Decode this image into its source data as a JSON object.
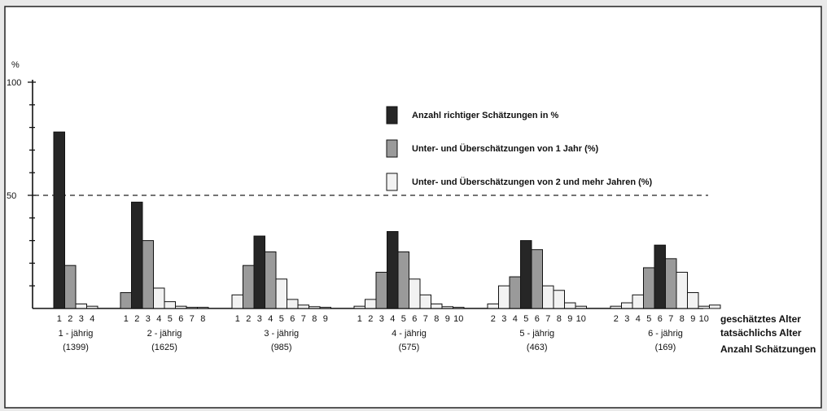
{
  "chart_data": {
    "type": "bar",
    "title": "",
    "ylabel": "%",
    "ylim": [
      0,
      100
    ],
    "yticks": [
      "50",
      "100"
    ],
    "reference_line": {
      "y": 50,
      "style": "dashed"
    },
    "legend_position": "top-center",
    "colors": {
      "correct": "#262626",
      "one_year": "#9a9a9a",
      "two_plus": "#f2f2f2"
    },
    "legend": [
      {
        "key": "correct",
        "label": "Anzahl richtiger Schätzungen in %"
      },
      {
        "key": "one_year",
        "label": "Unter- und Überschätzungen von 1 Jahr (%)"
      },
      {
        "key": "two_plus",
        "label": "Unter- und Überschätzungen von 2 und mehr Jahren (%)"
      }
    ],
    "row_labels": [
      "geschätztes Alter",
      "tatsächlichs Alter",
      "Anzahl Schätzungen"
    ],
    "groups": [
      {
        "actual_label": "1 - jährig",
        "count_label": "(1399)",
        "bars": [
          {
            "x": "1",
            "v": 78,
            "c": "correct"
          },
          {
            "x": "2",
            "v": 19,
            "c": "one_year"
          },
          {
            "x": "3",
            "v": 2,
            "c": "two_plus"
          },
          {
            "x": "4",
            "v": 1,
            "c": "two_plus"
          }
        ]
      },
      {
        "actual_label": "2 - jährig",
        "count_label": "(1625)",
        "bars": [
          {
            "x": "1",
            "v": 7,
            "c": "one_year"
          },
          {
            "x": "2",
            "v": 47,
            "c": "correct"
          },
          {
            "x": "3",
            "v": 30,
            "c": "one_year"
          },
          {
            "x": "4",
            "v": 9,
            "c": "two_plus"
          },
          {
            "x": "5",
            "v": 3,
            "c": "two_plus"
          },
          {
            "x": "6",
            "v": 1,
            "c": "two_plus"
          },
          {
            "x": "7",
            "v": 0.5,
            "c": "two_plus"
          },
          {
            "x": "8",
            "v": 0.5,
            "c": "two_plus"
          }
        ]
      },
      {
        "actual_label": "3 - jährig",
        "count_label": "(985)",
        "bars": [
          {
            "x": "1",
            "v": 6,
            "c": "two_plus"
          },
          {
            "x": "2",
            "v": 19,
            "c": "one_year"
          },
          {
            "x": "3",
            "v": 32,
            "c": "correct"
          },
          {
            "x": "4",
            "v": 25,
            "c": "one_year"
          },
          {
            "x": "5",
            "v": 13,
            "c": "two_plus"
          },
          {
            "x": "6",
            "v": 4,
            "c": "two_plus"
          },
          {
            "x": "7",
            "v": 1.5,
            "c": "two_plus"
          },
          {
            "x": "8",
            "v": 0.8,
            "c": "two_plus"
          },
          {
            "x": "9",
            "v": 0.5,
            "c": "two_plus"
          }
        ]
      },
      {
        "actual_label": "4 - jährig",
        "count_label": "(575)",
        "bars": [
          {
            "x": "1",
            "v": 1,
            "c": "two_plus"
          },
          {
            "x": "2",
            "v": 4,
            "c": "two_plus"
          },
          {
            "x": "3",
            "v": 16,
            "c": "one_year"
          },
          {
            "x": "4",
            "v": 34,
            "c": "correct"
          },
          {
            "x": "5",
            "v": 25,
            "c": "one_year"
          },
          {
            "x": "6",
            "v": 13,
            "c": "two_plus"
          },
          {
            "x": "7",
            "v": 6,
            "c": "two_plus"
          },
          {
            "x": "8",
            "v": 2,
            "c": "two_plus"
          },
          {
            "x": "9",
            "v": 0.8,
            "c": "two_plus"
          },
          {
            "x": "10",
            "v": 0.5,
            "c": "two_plus"
          }
        ]
      },
      {
        "actual_label": "5 - jährig",
        "count_label": "(463)",
        "bars": [
          {
            "x": "2",
            "v": 2,
            "c": "two_plus"
          },
          {
            "x": "3",
            "v": 10,
            "c": "two_plus"
          },
          {
            "x": "4",
            "v": 14,
            "c": "one_year"
          },
          {
            "x": "5",
            "v": 30,
            "c": "correct"
          },
          {
            "x": "6",
            "v": 26,
            "c": "one_year"
          },
          {
            "x": "7",
            "v": 10,
            "c": "two_plus"
          },
          {
            "x": "8",
            "v": 8,
            "c": "two_plus"
          },
          {
            "x": "9",
            "v": 2.5,
            "c": "two_plus"
          },
          {
            "x": "10",
            "v": 1,
            "c": "two_plus"
          }
        ]
      },
      {
        "actual_label": "6 - jährig",
        "count_label": "(169)",
        "bars": [
          {
            "x": "2",
            "v": 1,
            "c": "two_plus"
          },
          {
            "x": "3",
            "v": 2.5,
            "c": "two_plus"
          },
          {
            "x": "4",
            "v": 6,
            "c": "two_plus"
          },
          {
            "x": "5",
            "v": 18,
            "c": "one_year"
          },
          {
            "x": "6",
            "v": 28,
            "c": "correct"
          },
          {
            "x": "7",
            "v": 22,
            "c": "one_year"
          },
          {
            "x": "8",
            "v": 16,
            "c": "two_plus"
          },
          {
            "x": "9",
            "v": 7,
            "c": "two_plus"
          },
          {
            "x": "10",
            "v": 1,
            "c": "two_plus"
          },
          {
            "x": "",
            "v": 1.5,
            "c": "two_plus"
          }
        ]
      }
    ]
  }
}
